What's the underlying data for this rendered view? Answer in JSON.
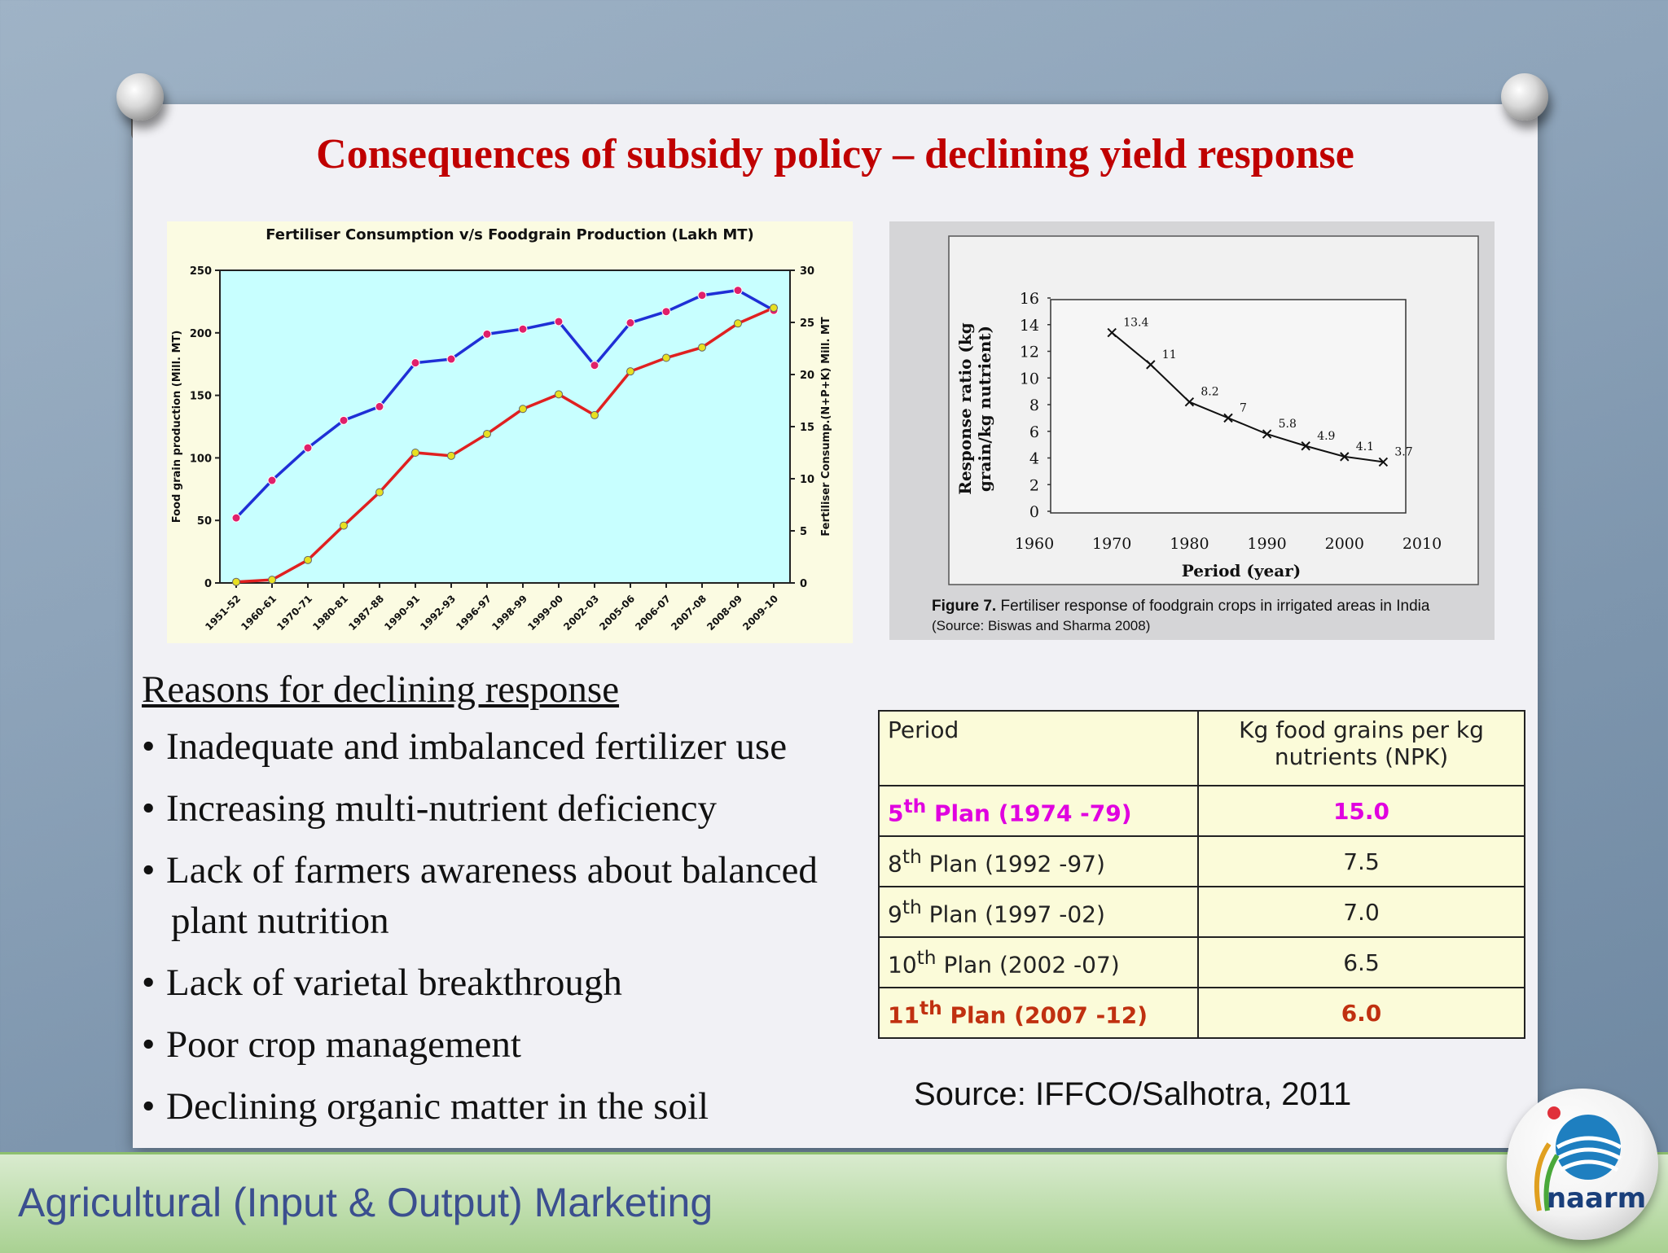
{
  "slide": {
    "title": "Consequences of subsidy policy – declining yield response"
  },
  "left_chart_text": {
    "title": "Fertiliser Consumption v/s Foodgrain Production (Lakh MT)",
    "ylabel_left": "Food grain production (Mill. MT)",
    "ylabel_right": "Fertiliser Consump.(N+P+K) Mill. MT"
  },
  "right_chart_text": {
    "ylabel_line1": "Response ratio (kg",
    "ylabel_line2": "grain/kg nutrient)",
    "xlabel": "Period (year)",
    "caption_label": "Figure 7.",
    "caption_text": " Fertiliser response of foodgrain crops in irrigated areas in India",
    "caption_source": "(Source: Biswas and Sharma 2008)"
  },
  "reasons": {
    "heading": "Reasons for declining response",
    "items": [
      "Inadequate and imbalanced fertilizer use",
      "Increasing multi-nutrient deficiency",
      "Lack of farmers awareness about balanced",
      "Lack of varietal breakthrough",
      "Poor crop management",
      "Declining organic matter in the soil"
    ],
    "item3_cont": "plant nutrition"
  },
  "table": {
    "header": [
      "Period",
      "Kg food grains per kg nutrients (NPK)"
    ],
    "rows": [
      {
        "ord": "5",
        "sup": "th",
        "rest": " Plan (1974 -79)",
        "value": "15.0"
      },
      {
        "ord": "8",
        "sup": "th",
        "rest": " Plan (1992 -97)",
        "value": "7.5"
      },
      {
        "ord": "9",
        "sup": "th",
        "rest": " Plan (1997 -02)",
        "value": "7.0"
      },
      {
        "ord": "10",
        "sup": "th",
        "rest": " Plan (2002 -07)",
        "value": "6.5"
      },
      {
        "ord": "11",
        "sup": "th",
        "rest": " Plan (2007 -12)",
        "value": "6.0"
      }
    ]
  },
  "source": "Source: IFFCO/Salhotra, 2011",
  "footer": {
    "text": "Agricultural (Input & Output) Marketing",
    "logo_text": "naarm"
  },
  "colors": {
    "title": "#c00000",
    "left_plot_bg": "#c8ffff",
    "foodgrain_line": "#1f2fd6",
    "foodgrain_marker": "#e0206a",
    "fertiliser_line": "#e02020",
    "fertiliser_marker": "#e8e020",
    "row_hl1": "#e000e0",
    "row_hl2": "#c03010"
  },
  "chart_data": [
    {
      "type": "line",
      "title": "Fertiliser Consumption v/s Foodgrain Production (Lakh MT)",
      "x": [
        "1951-52",
        "1960-61",
        "1970-71",
        "1980-81",
        "1987-88",
        "1990-91",
        "1992-93",
        "1996-97",
        "1998-99",
        "1999-00",
        "2002-03",
        "2005-06",
        "2006-07",
        "2007-08",
        "2008-09",
        "2009-10"
      ],
      "ylabel": "Food grain production (Mill. MT)",
      "ylim": [
        0,
        250
      ],
      "yticks": [
        0,
        50,
        100,
        150,
        200,
        250
      ],
      "y2label": "Fertiliser Consump.(N+P+K) Mill. MT",
      "y2lim": [
        0,
        30
      ],
      "y2ticks": [
        0,
        5,
        10,
        15,
        20,
        25,
        30
      ],
      "series": [
        {
          "axis": "left",
          "values": [
            52,
            82,
            108,
            130,
            141,
            176,
            179,
            199,
            203,
            209,
            174,
            208,
            217,
            230,
            234,
            218
          ]
        },
        {
          "axis": "right",
          "values": [
            0.1,
            0.3,
            2.2,
            5.5,
            8.7,
            12.5,
            12.2,
            14.3,
            16.7,
            18.1,
            16.1,
            20.3,
            21.6,
            22.6,
            24.9,
            26.4
          ]
        }
      ],
      "grid": false
    },
    {
      "type": "line",
      "xlabel": "Period (year)",
      "ylabel": "Response ratio (kg grain/kg nutrient)",
      "xlim": [
        1960,
        2010
      ],
      "xticks": [
        1960,
        1970,
        1980,
        1990,
        2000,
        2010
      ],
      "ylim": [
        0,
        16
      ],
      "yticks": [
        0,
        2,
        4,
        6,
        8,
        10,
        12,
        14,
        16
      ],
      "x": [
        1970,
        1975,
        1980,
        1985,
        1990,
        1995,
        2000,
        2005
      ],
      "values": [
        13.4,
        11,
        8.2,
        7,
        5.8,
        4.9,
        4.1,
        3.7
      ],
      "labels": [
        "13.4",
        "11",
        "8.2",
        "7",
        "5.8",
        "4.9",
        "4.1",
        "3.7"
      ],
      "grid": false
    }
  ]
}
